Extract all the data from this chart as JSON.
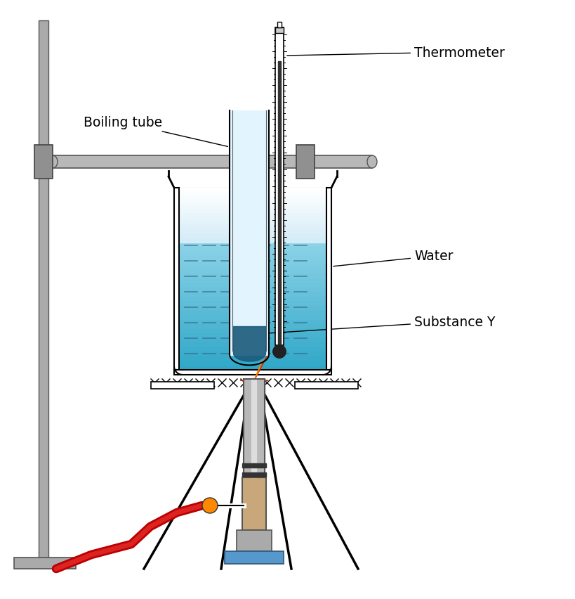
{
  "bg_color": "#ffffff",
  "labels": {
    "boiling_tube": "Boiling tube",
    "thermometer": "Thermometer",
    "water": "Water",
    "substance_y": "Substance Y"
  },
  "colors": {
    "water_light": "#b3ecf5",
    "water_dark": "#007b9e",
    "beaker_outline": "#000000",
    "stand_gray": "#aaaaaa",
    "clamp_gray": "#888888",
    "rod_gray": "#b0b0b0",
    "bunsen_barrel": "#b0b0b0",
    "bunsen_body": "#c8a87a",
    "flame_outer": "#ff4400",
    "flame_inner": "#ffaa00",
    "hose_red": "#cc0000",
    "valve_orange": "#ff8800",
    "base_blue": "#5599cc",
    "text_color": "#000000",
    "boiling_tube_fill": "#e0f5ff",
    "substance_dark": "#1a3355",
    "thermometer_fill": "#ffffff",
    "mercury": "#333333"
  },
  "figure_size": [
    8.2,
    8.53
  ],
  "dpi": 100
}
